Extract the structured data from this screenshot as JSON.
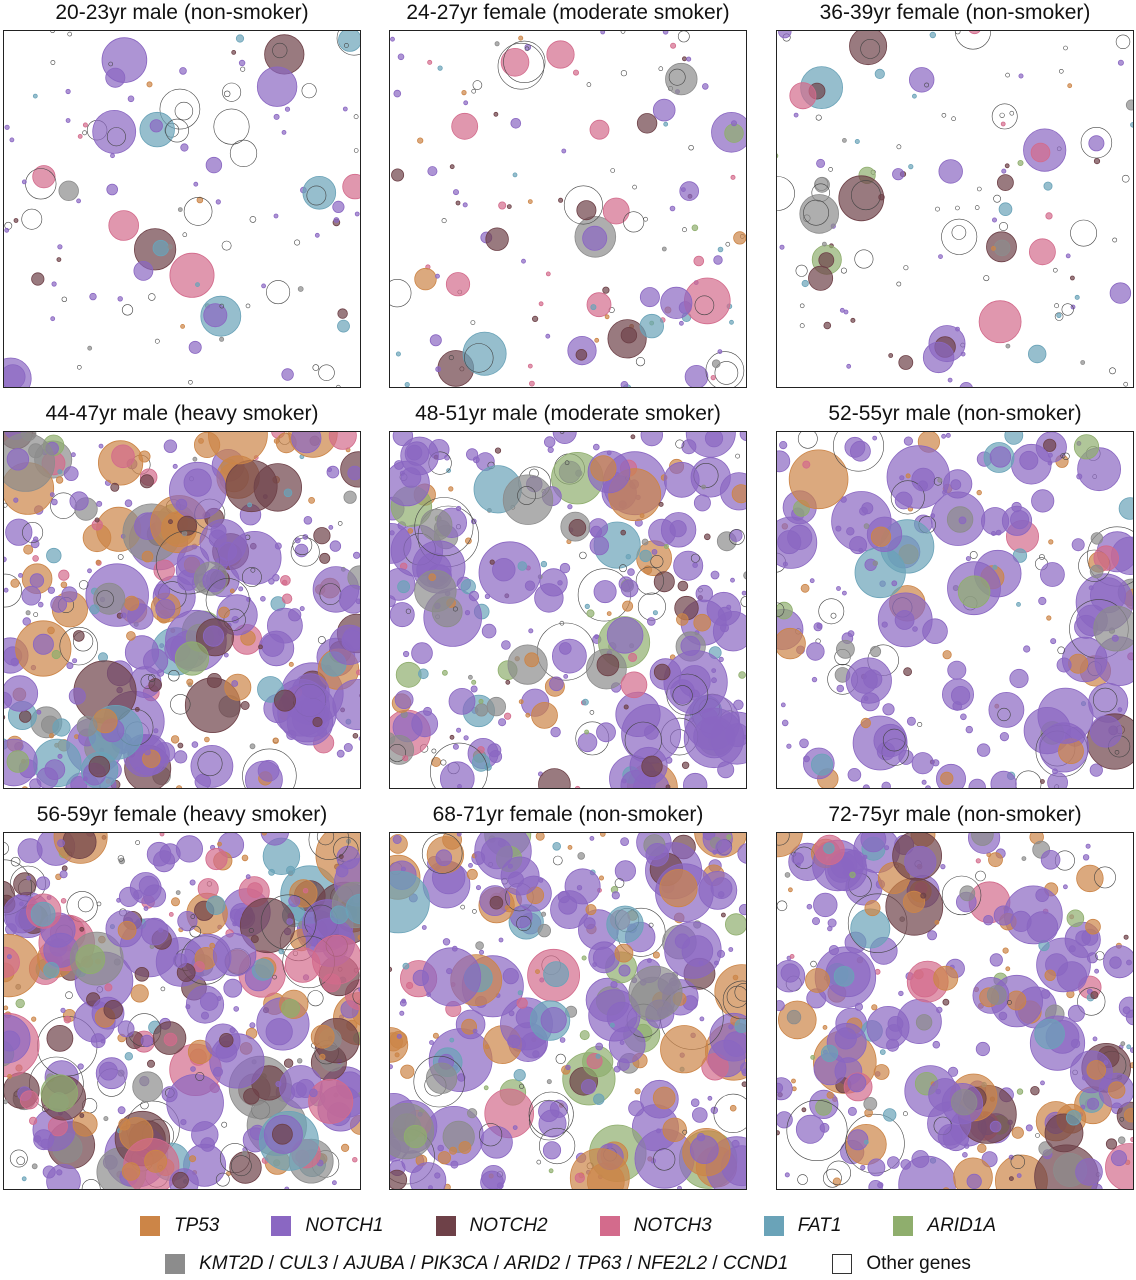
{
  "chart_data": [
    {
      "type": "scatter",
      "title": "20-23yr male (non-smoker)",
      "density": 110,
      "mix": {
        "TP53": 0.05,
        "NOTCH1": 0.42,
        "NOTCH2": 0.12,
        "NOTCH3": 0.04,
        "FAT1": 0.05,
        "ARID1A": 0.0,
        "KMT2D": 0.06,
        "Other": 0.26
      }
    },
    {
      "type": "scatter",
      "title": "24-27yr female (moderate smoker)",
      "density": 130,
      "mix": {
        "TP53": 0.06,
        "NOTCH1": 0.26,
        "NOTCH2": 0.14,
        "NOTCH3": 0.14,
        "FAT1": 0.08,
        "ARID1A": 0.03,
        "KMT2D": 0.06,
        "Other": 0.23
      }
    },
    {
      "type": "scatter",
      "title": "36-39yr female (non-smoker)",
      "density": 120,
      "mix": {
        "TP53": 0.03,
        "NOTCH1": 0.22,
        "NOTCH2": 0.12,
        "NOTCH3": 0.06,
        "FAT1": 0.12,
        "ARID1A": 0.02,
        "KMT2D": 0.08,
        "Other": 0.35
      }
    },
    {
      "type": "scatter",
      "title": "44-47yr male (heavy smoker)",
      "density": 330,
      "mix": {
        "TP53": 0.16,
        "NOTCH1": 0.4,
        "NOTCH2": 0.13,
        "NOTCH3": 0.05,
        "FAT1": 0.05,
        "ARID1A": 0.02,
        "KMT2D": 0.07,
        "Other": 0.12
      }
    },
    {
      "type": "scatter",
      "title": "48-51yr male (moderate smoker)",
      "density": 290,
      "mix": {
        "TP53": 0.12,
        "NOTCH1": 0.48,
        "NOTCH2": 0.05,
        "NOTCH3": 0.04,
        "FAT1": 0.06,
        "ARID1A": 0.03,
        "KMT2D": 0.07,
        "Other": 0.15
      }
    },
    {
      "type": "scatter",
      "title": "52-55yr male (non-smoker)",
      "density": 210,
      "mix": {
        "TP53": 0.08,
        "NOTCH1": 0.56,
        "NOTCH2": 0.04,
        "NOTCH3": 0.03,
        "FAT1": 0.07,
        "ARID1A": 0.02,
        "KMT2D": 0.06,
        "Other": 0.14
      }
    },
    {
      "type": "scatter",
      "title": "56-59yr female (heavy smoker)",
      "density": 360,
      "mix": {
        "TP53": 0.1,
        "NOTCH1": 0.33,
        "NOTCH2": 0.1,
        "NOTCH3": 0.11,
        "FAT1": 0.06,
        "ARID1A": 0.02,
        "KMT2D": 0.1,
        "Other": 0.18
      }
    },
    {
      "type": "scatter",
      "title": "68-71yr female (non-smoker)",
      "density": 300,
      "mix": {
        "TP53": 0.16,
        "NOTCH1": 0.5,
        "NOTCH2": 0.04,
        "NOTCH3": 0.04,
        "FAT1": 0.05,
        "ARID1A": 0.05,
        "KMT2D": 0.06,
        "Other": 0.1
      }
    },
    {
      "type": "scatter",
      "title": "72-75yr male (non-smoker)",
      "density": 280,
      "mix": {
        "TP53": 0.22,
        "NOTCH1": 0.48,
        "NOTCH2": 0.06,
        "NOTCH3": 0.04,
        "FAT1": 0.06,
        "ARID1A": 0.02,
        "KMT2D": 0.05,
        "Other": 0.07
      }
    }
  ],
  "legend": {
    "tp53": "TP53",
    "notch1": "NOTCH1",
    "notch2": "NOTCH2",
    "notch3": "NOTCH3",
    "fat1": "FAT1",
    "arid1a": "ARID1A",
    "minor_genes": [
      "KMT2D",
      "CUL3",
      "AJUBA",
      "PIK3CA",
      "ARID2",
      "TP63",
      "NFE2L2",
      "CCND1"
    ],
    "separator": " / ",
    "other": "Other genes"
  },
  "colors": {
    "TP53": "#cc8547",
    "NOTCH1": "#8a67c2",
    "NOTCH2": "#6e4148",
    "NOTCH3": "#d36b8c",
    "FAT1": "#6aa3b8",
    "ARID1A": "#8fae6d",
    "KMT2D": "#8c8c8c",
    "Other": "#ffffff"
  }
}
